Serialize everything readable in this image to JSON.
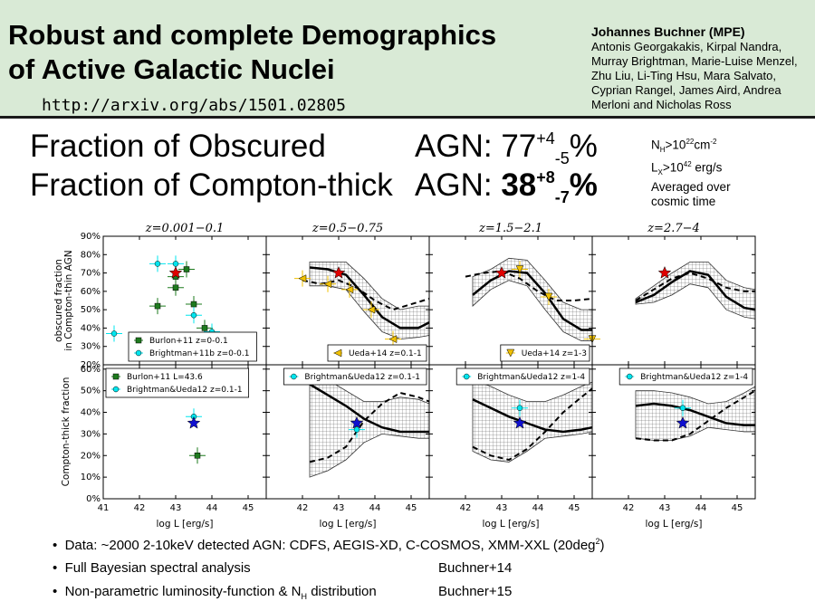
{
  "header": {
    "title_line1": "Robust and complete Demographics",
    "title_line2": "of Active Galactic Nuclei",
    "url": "http://arxiv.org/abs/1501.02805",
    "author_main": "Johannes Buchner (MPE)",
    "coauthors": "Antonis Georgakakis, Kirpal Nandra, Murray Brightman, Marie-Luise Menzel, Zhu Liu, Li-Ting Hsu, Mara Salvato, Cyprian Rangel, James Aird, Andrea Merloni and Nicholas Ross"
  },
  "fractions": {
    "obscured_label": "Fraction of Obscured",
    "obscured_agn": "AGN:",
    "obscured_value": "77",
    "obscured_plus": "+4",
    "obscured_minus": "-5",
    "obscured_pct": "%",
    "ct_label": "Fraction of Compton-thick",
    "ct_agn": "AGN:",
    "ct_value": "38",
    "ct_plus": "+8",
    "ct_minus": "-7",
    "ct_pct": "%"
  },
  "conditions": {
    "nh_a": "N",
    "nh_sub": "H",
    "nh_b": ">10",
    "nh_exp": "22",
    "nh_c": "cm",
    "nh_unit_exp": "-2",
    "lx_a": "L",
    "lx_sub": "X",
    "lx_b": ">10",
    "lx_exp": "42",
    "lx_c": " erg/s",
    "avg1": "Averaged over",
    "avg2": "cosmic time"
  },
  "bullets": [
    {
      "text_a": "Data: ~2000 2-10keV detected AGN: CDFS, AEGIS-XD, C-COSMOS, XMM-XXL (20deg",
      "text_sup": "2",
      "text_b": ")",
      "cite": ""
    },
    {
      "text": "Full Bayesian spectral analysis",
      "cite": "Buchner+14"
    },
    {
      "text_a": "Non-parametric luminosity-function & N",
      "text_sub": "H",
      "text_b": " distribution",
      "cite": "Buchner+15"
    }
  ],
  "chart_data": [
    {
      "type": "line",
      "title": "z=0.001−0.1",
      "ylabel": "obscured fraction in Compton-thin AGN",
      "xlim": [
        41,
        45.5
      ],
      "ylim": [
        20,
        90
      ],
      "yticks": [
        "20%",
        "30%",
        "40%",
        "50%",
        "60%",
        "70%",
        "80%",
        "90%"
      ],
      "legend": "lower-left",
      "series": [
        {
          "name": "Burlon+11 z=0-0.1",
          "color": "#1e7b1e",
          "marker": "square",
          "points": [
            [
              42.5,
              52
            ],
            [
              43.0,
              62
            ],
            [
              43.0,
              68
            ],
            [
              43.3,
              72
            ],
            [
              43.5,
              53
            ],
            [
              43.8,
              40
            ]
          ]
        },
        {
          "name": "Brightman+11b z=0-0.1",
          "color": "#00e5ee",
          "marker": "circle",
          "points": [
            [
              41.3,
              37
            ],
            [
              42.5,
              75
            ],
            [
              43.0,
              75
            ],
            [
              43.5,
              47
            ],
            [
              44.0,
              38
            ]
          ]
        }
      ],
      "star": [
        43.0,
        70
      ]
    },
    {
      "type": "line",
      "title": "z=0.5−0.75",
      "xlim": [
        41,
        45.5
      ],
      "ylim": [
        20,
        90
      ],
      "legend": "lower-right",
      "series": [
        {
          "name": "Ueda+14 z=0.1-1",
          "color": "#f0c000",
          "marker": "triangle-left",
          "points": [
            [
              42.0,
              67
            ],
            [
              42.7,
              64
            ],
            [
              43.3,
              61
            ],
            [
              43.9,
              50
            ],
            [
              44.5,
              34
            ]
          ]
        }
      ],
      "median": [
        [
          42.2,
          73
        ],
        [
          42.7,
          72
        ],
        [
          43.2,
          69
        ],
        [
          43.7,
          58
        ],
        [
          44.2,
          46
        ],
        [
          44.7,
          40
        ],
        [
          45.2,
          40
        ],
        [
          45.5,
          43
        ]
      ],
      "dashed": [
        [
          42.0,
          66
        ],
        [
          42.5,
          64
        ],
        [
          43.0,
          66
        ],
        [
          43.5,
          62
        ],
        [
          44.0,
          55
        ],
        [
          44.5,
          50
        ],
        [
          45.0,
          53
        ],
        [
          45.5,
          56
        ]
      ],
      "band_low": [
        [
          42.2,
          63
        ],
        [
          42.7,
          63
        ],
        [
          43.2,
          61
        ],
        [
          43.7,
          49
        ],
        [
          44.2,
          38
        ],
        [
          44.7,
          34
        ],
        [
          45.2,
          35
        ],
        [
          45.5,
          36
        ]
      ],
      "band_high": [
        [
          42.2,
          76
        ],
        [
          42.7,
          76
        ],
        [
          43.2,
          76
        ],
        [
          43.7,
          67
        ],
        [
          44.2,
          56
        ],
        [
          44.7,
          50
        ],
        [
          45.2,
          52
        ],
        [
          45.5,
          52
        ]
      ],
      "star": [
        43.0,
        70
      ]
    },
    {
      "type": "line",
      "title": "z=1.5−2.1",
      "xlim": [
        41,
        45.5
      ],
      "ylim": [
        20,
        90
      ],
      "legend": "lower-right",
      "series": [
        {
          "name": "Ueda+14 z=1-3",
          "color": "#f0c000",
          "marker": "triangle-down",
          "points": [
            [
              43.5,
              72
            ],
            [
              44.3,
              57
            ],
            [
              45.5,
              34
            ]
          ]
        }
      ],
      "median": [
        [
          42.2,
          58
        ],
        [
          42.7,
          66
        ],
        [
          43.2,
          71
        ],
        [
          43.7,
          70
        ],
        [
          44.2,
          59
        ],
        [
          44.7,
          45
        ],
        [
          45.2,
          39
        ],
        [
          45.5,
          39
        ]
      ],
      "dashed": [
        [
          42.0,
          68
        ],
        [
          42.5,
          70
        ],
        [
          43.0,
          71
        ],
        [
          43.5,
          67
        ],
        [
          44.0,
          60
        ],
        [
          44.5,
          55
        ],
        [
          45.0,
          55
        ],
        [
          45.5,
          56
        ]
      ],
      "band_low": [
        [
          42.2,
          52
        ],
        [
          42.7,
          61
        ],
        [
          43.2,
          66
        ],
        [
          43.7,
          63
        ],
        [
          44.2,
          50
        ],
        [
          44.7,
          38
        ],
        [
          45.2,
          33
        ],
        [
          45.5,
          33
        ]
      ],
      "band_high": [
        [
          42.2,
          68
        ],
        [
          42.7,
          72
        ],
        [
          43.2,
          78
        ],
        [
          43.7,
          77
        ],
        [
          44.2,
          66
        ],
        [
          44.7,
          54
        ],
        [
          45.2,
          50
        ],
        [
          45.5,
          50
        ]
      ],
      "star": [
        43.0,
        70
      ]
    },
    {
      "type": "line",
      "title": "z=2.7−4",
      "xlim": [
        41,
        45.5
      ],
      "ylim": [
        20,
        90
      ],
      "median": [
        [
          42.2,
          54
        ],
        [
          42.7,
          58
        ],
        [
          43.2,
          65
        ],
        [
          43.7,
          71
        ],
        [
          44.2,
          69
        ],
        [
          44.7,
          57
        ],
        [
          45.2,
          51
        ],
        [
          45.5,
          50
        ]
      ],
      "dashed": [
        [
          42.2,
          55
        ],
        [
          42.7,
          61
        ],
        [
          43.2,
          67
        ],
        [
          43.7,
          70
        ],
        [
          44.2,
          67
        ],
        [
          44.7,
          62
        ],
        [
          45.2,
          60
        ],
        [
          45.5,
          60
        ]
      ],
      "band_low": [
        [
          42.2,
          53
        ],
        [
          42.7,
          54
        ],
        [
          43.2,
          58
        ],
        [
          43.7,
          64
        ],
        [
          44.2,
          62
        ],
        [
          44.7,
          50
        ],
        [
          45.2,
          46
        ],
        [
          45.5,
          45
        ]
      ],
      "band_high": [
        [
          42.2,
          56
        ],
        [
          42.7,
          63
        ],
        [
          43.2,
          70
        ],
        [
          43.7,
          76
        ],
        [
          44.2,
          76
        ],
        [
          44.7,
          66
        ],
        [
          45.2,
          62
        ],
        [
          45.5,
          61
        ]
      ],
      "star": [
        43.0,
        70
      ]
    },
    {
      "type": "line",
      "ylabel": "Compton-thick fraction",
      "xlabel": "log L [erg/s]",
      "xlim": [
        41,
        45.5
      ],
      "ylim": [
        0,
        62
      ],
      "xticks": [
        "41",
        "42",
        "43",
        "44",
        "45"
      ],
      "yticks": [
        "0%",
        "10%",
        "20%",
        "30%",
        "40%",
        "50%",
        "60%"
      ],
      "legend": "upper-left",
      "series": [
        {
          "name": "Burlon+11 L=43.6",
          "color": "#1e7b1e",
          "marker": "square",
          "points": [
            [
              43.6,
              20
            ]
          ]
        },
        {
          "name": "Brightman&Ueda12 z=0.1-1",
          "color": "#00e5ee",
          "marker": "circle",
          "points": [
            [
              43.5,
              38
            ]
          ]
        }
      ],
      "star": [
        43.5,
        35
      ]
    },
    {
      "type": "line",
      "xlabel": "log L [erg/s]",
      "xlim": [
        41,
        45.5
      ],
      "ylim": [
        0,
        62
      ],
      "xticks": [
        "42",
        "43",
        "44",
        "45"
      ],
      "legend": "upper-right",
      "series": [
        {
          "name": "Brightman&Ueda12 z=0.1-1",
          "color": "#00e5ee",
          "marker": "circle",
          "points": [
            [
              43.5,
              32
            ]
          ]
        }
      ],
      "median": [
        [
          42.2,
          53
        ],
        [
          42.7,
          48
        ],
        [
          43.2,
          43
        ],
        [
          43.7,
          37
        ],
        [
          44.2,
          33
        ],
        [
          44.7,
          31
        ],
        [
          45.2,
          31
        ],
        [
          45.5,
          31
        ]
      ],
      "dashed": [
        [
          42.2,
          17
        ],
        [
          42.7,
          19
        ],
        [
          43.2,
          24
        ],
        [
          43.7,
          36
        ],
        [
          44.2,
          44
        ],
        [
          44.7,
          49
        ],
        [
          45.2,
          47
        ],
        [
          45.5,
          45
        ]
      ],
      "band_low": [
        [
          42.2,
          10
        ],
        [
          42.7,
          13
        ],
        [
          43.2,
          18
        ],
        [
          43.7,
          26
        ],
        [
          44.2,
          30
        ],
        [
          44.7,
          29
        ],
        [
          45.2,
          28
        ],
        [
          45.5,
          28
        ]
      ],
      "band_high": [
        [
          42.2,
          58
        ],
        [
          42.7,
          55
        ],
        [
          43.2,
          50
        ],
        [
          43.7,
          45
        ],
        [
          44.2,
          45
        ],
        [
          44.7,
          47
        ],
        [
          45.2,
          46
        ],
        [
          45.5,
          44
        ]
      ],
      "star": [
        43.5,
        35
      ]
    },
    {
      "type": "line",
      "xlabel": "log L [erg/s]",
      "xlim": [
        41,
        45.5
      ],
      "ylim": [
        0,
        62
      ],
      "xticks": [
        "42",
        "43",
        "44",
        "45"
      ],
      "legend": "upper-right",
      "series": [
        {
          "name": "Brightman&Ueda12 z=1-4",
          "color": "#00e5ee",
          "marker": "circle",
          "points": [
            [
              43.5,
              42
            ]
          ]
        }
      ],
      "median": [
        [
          42.2,
          46
        ],
        [
          42.7,
          42
        ],
        [
          43.2,
          38
        ],
        [
          43.7,
          35
        ],
        [
          44.2,
          32
        ],
        [
          44.7,
          31
        ],
        [
          45.2,
          32
        ],
        [
          45.5,
          33
        ]
      ],
      "dashed": [
        [
          42.2,
          24
        ],
        [
          42.7,
          20
        ],
        [
          43.2,
          18
        ],
        [
          43.7,
          23
        ],
        [
          44.2,
          31
        ],
        [
          44.7,
          40
        ],
        [
          45.2,
          47
        ],
        [
          45.5,
          51
        ]
      ],
      "band_low": [
        [
          42.2,
          22
        ],
        [
          42.7,
          18
        ],
        [
          43.2,
          17
        ],
        [
          43.7,
          22
        ],
        [
          44.2,
          28
        ],
        [
          44.7,
          29
        ],
        [
          45.2,
          30
        ],
        [
          45.5,
          31
        ]
      ],
      "band_high": [
        [
          42.2,
          55
        ],
        [
          42.7,
          52
        ],
        [
          43.2,
          48
        ],
        [
          43.7,
          45
        ],
        [
          44.2,
          45
        ],
        [
          44.7,
          48
        ],
        [
          45.2,
          52
        ],
        [
          45.5,
          54
        ]
      ],
      "star": [
        43.5,
        35
      ]
    },
    {
      "type": "line",
      "xlabel": "log L [erg/s]",
      "xlim": [
        41,
        45.5
      ],
      "ylim": [
        0,
        62
      ],
      "xticks": [
        "42",
        "43",
        "44",
        "45"
      ],
      "legend": "upper-right",
      "series": [
        {
          "name": "Brightman&Ueda12 z=1-4",
          "color": "#00e5ee",
          "marker": "circle",
          "points": [
            [
              43.5,
              42
            ]
          ]
        }
      ],
      "median": [
        [
          42.2,
          43
        ],
        [
          42.7,
          44
        ],
        [
          43.2,
          43
        ],
        [
          43.7,
          41
        ],
        [
          44.2,
          38
        ],
        [
          44.7,
          35
        ],
        [
          45.2,
          34
        ],
        [
          45.5,
          34
        ]
      ],
      "dashed": [
        [
          42.2,
          28
        ],
        [
          42.7,
          27
        ],
        [
          43.2,
          27
        ],
        [
          43.7,
          30
        ],
        [
          44.2,
          36
        ],
        [
          44.7,
          42
        ],
        [
          45.2,
          47
        ],
        [
          45.5,
          50
        ]
      ],
      "band_low": [
        [
          42.2,
          28
        ],
        [
          42.7,
          27
        ],
        [
          43.2,
          27
        ],
        [
          43.7,
          29
        ],
        [
          44.2,
          33
        ],
        [
          44.7,
          32
        ],
        [
          45.2,
          31
        ],
        [
          45.5,
          31
        ]
      ],
      "band_high": [
        [
          42.2,
          50
        ],
        [
          42.7,
          50
        ],
        [
          43.2,
          49
        ],
        [
          43.7,
          47
        ],
        [
          44.2,
          44
        ],
        [
          44.7,
          45
        ],
        [
          45.2,
          49
        ],
        [
          45.5,
          52
        ]
      ],
      "star": [
        43.5,
        35
      ]
    }
  ]
}
